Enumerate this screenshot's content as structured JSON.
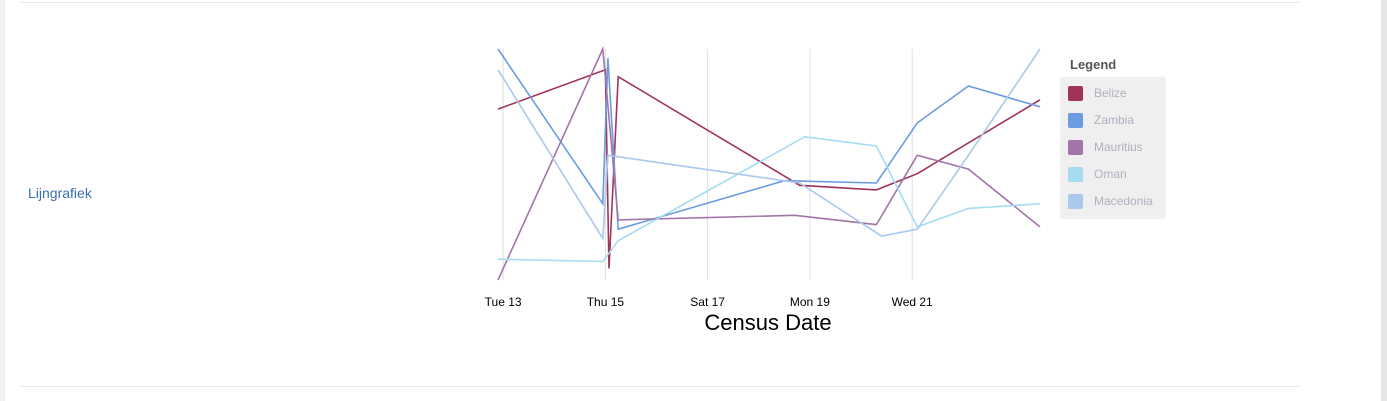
{
  "section": {
    "chart_label": "Lijngrafiek"
  },
  "chart_data": {
    "type": "line",
    "xlabel": "Census Date",
    "x_ticks": [
      "Tue 13",
      "Thu 15",
      "Sat 17",
      "Mon 19",
      "Wed 21"
    ],
    "x_tick_days": [
      13,
      15,
      17,
      19,
      21
    ],
    "xlim": [
      12.9,
      23.5
    ],
    "ylim": [
      0,
      100
    ],
    "grid": "vertical",
    "legend": {
      "title": "Legend",
      "placement": "right"
    },
    "series": [
      {
        "name": "Belize",
        "color": "#a0335a",
        "points": [
          [
            12.9,
            74
          ],
          [
            15.0,
            91
          ],
          [
            15.07,
            5
          ],
          [
            15.25,
            88
          ],
          [
            18.8,
            41
          ],
          [
            20.3,
            39
          ],
          [
            21.1,
            46
          ],
          [
            23.5,
            78
          ]
        ]
      },
      {
        "name": "Zambia",
        "color": "#6b9be0",
        "points": [
          [
            12.9,
            100
          ],
          [
            14.95,
            33
          ],
          [
            15.05,
            96
          ],
          [
            15.25,
            22
          ],
          [
            18.5,
            43
          ],
          [
            20.3,
            42
          ],
          [
            21.1,
            68
          ],
          [
            22.1,
            84
          ],
          [
            23.5,
            75
          ]
        ]
      },
      {
        "name": "Mauritius",
        "color": "#a275a8",
        "points": [
          [
            12.9,
            0
          ],
          [
            14.95,
            100
          ],
          [
            15.25,
            26
          ],
          [
            18.7,
            28
          ],
          [
            20.3,
            24
          ],
          [
            21.1,
            54
          ],
          [
            22.1,
            48
          ],
          [
            23.5,
            23
          ]
        ]
      },
      {
        "name": "Oman",
        "color": "#a6dcf0",
        "points": [
          [
            12.9,
            9
          ],
          [
            14.95,
            8
          ],
          [
            15.25,
            17
          ],
          [
            18.9,
            62
          ],
          [
            20.3,
            58
          ],
          [
            21.1,
            23
          ],
          [
            22.1,
            31
          ],
          [
            23.5,
            33
          ]
        ]
      },
      {
        "name": "Macedonia",
        "color": "#a9c8ec",
        "points": [
          [
            12.9,
            91
          ],
          [
            14.95,
            18
          ],
          [
            15.05,
            54
          ],
          [
            18.8,
            42
          ],
          [
            20.4,
            19
          ],
          [
            21.1,
            22
          ],
          [
            22.1,
            54
          ],
          [
            23.5,
            100
          ]
        ]
      }
    ]
  }
}
